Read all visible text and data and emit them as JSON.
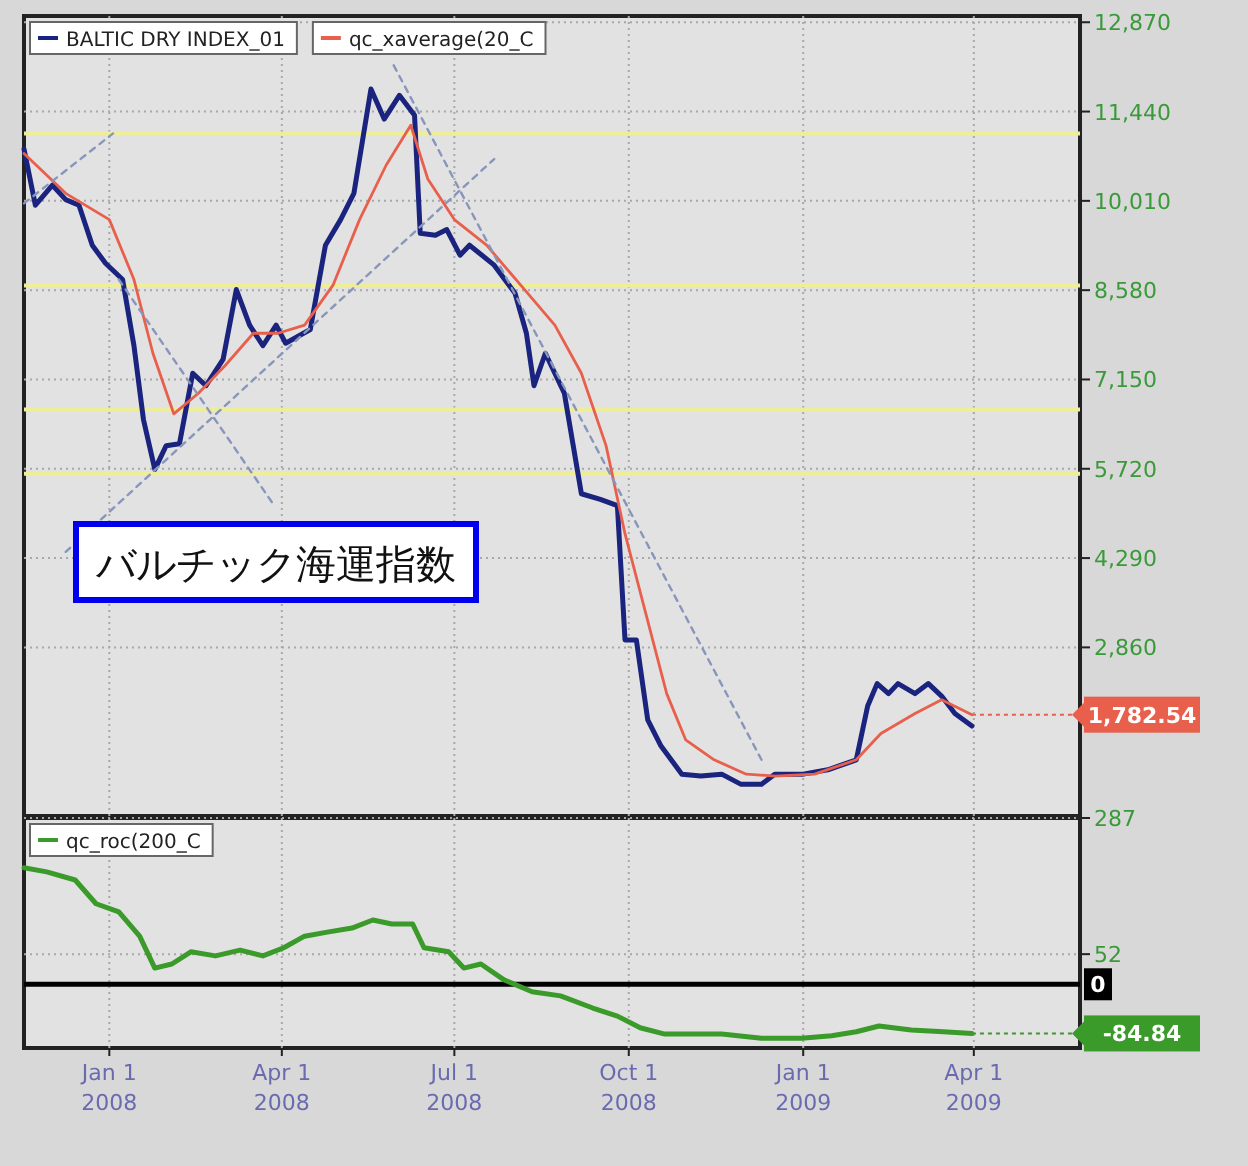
{
  "chart_data": [
    {
      "type": "line",
      "title": "バルチック海運指数",
      "xlim": [
        "2007-11-17",
        "2009-05-27"
      ],
      "ylim": [
        160,
        12970
      ],
      "xticks": [
        {
          "value": "2008-01-01",
          "label": null
        },
        {
          "value": "2008-04-01",
          "label": null
        },
        {
          "value": "2008-07-01",
          "label": null
        },
        {
          "value": "2008-10-01",
          "label": null
        },
        {
          "value": "2009-01-01",
          "label": null
        },
        {
          "value": "2009-04-01",
          "label": null
        }
      ],
      "yticks": [
        {
          "value": 2860,
          "label": "2,860"
        },
        {
          "value": 4290,
          "label": "4,290"
        },
        {
          "value": 5720,
          "label": "5,720"
        },
        {
          "value": 7150,
          "label": "7,150"
        },
        {
          "value": 8580,
          "label": "8,580"
        },
        {
          "value": 10010,
          "label": "10,010"
        },
        {
          "value": 11440,
          "label": "11,440"
        },
        {
          "value": 12870,
          "label": "12,870"
        }
      ],
      "tick_labels": "y",
      "grid": true,
      "legend": "top left",
      "ref_lines": [
        {
          "axis": "y",
          "value": 11090,
          "color": "#eeee99"
        },
        {
          "axis": "y",
          "value": 8655,
          "color": "#eeee99"
        },
        {
          "axis": "y",
          "value": 6670,
          "color": "#eeee99"
        },
        {
          "axis": "y",
          "value": 5640,
          "color": "#eeee99"
        }
      ],
      "series": [
        {
          "name": "BALTIC DRY INDEX_01",
          "color": "#1a237e",
          "x": [
            "2007-11-17",
            "2007-11-23",
            "2007-12-02",
            "2007-12-09",
            "2007-12-16",
            "2007-12-23",
            "2007-12-30",
            "2008-01-08",
            "2008-01-14",
            "2008-01-19",
            "2008-01-25",
            "2008-01-31",
            "2008-02-07",
            "2008-02-14",
            "2008-02-21",
            "2008-03-01",
            "2008-03-08",
            "2008-03-15",
            "2008-03-22",
            "2008-03-29",
            "2008-04-03",
            "2008-04-16",
            "2008-04-24",
            "2008-05-02",
            "2008-05-09",
            "2008-05-18",
            "2008-05-25",
            "2008-06-02",
            "2008-06-10",
            "2008-06-13",
            "2008-06-21",
            "2008-06-27",
            "2008-07-04",
            "2008-07-09",
            "2008-07-22",
            "2008-08-02",
            "2008-08-08",
            "2008-08-12",
            "2008-08-18",
            "2008-08-28",
            "2008-09-06",
            "2008-09-16",
            "2008-09-25",
            "2008-09-29",
            "2008-10-05",
            "2008-10-11",
            "2008-10-18",
            "2008-10-29",
            "2008-11-08",
            "2008-11-19",
            "2008-11-29",
            "2008-12-10",
            "2008-12-17",
            "2009-01-01",
            "2009-01-14",
            "2009-01-29",
            "2009-02-04",
            "2009-02-09",
            "2009-02-15",
            "2009-02-20",
            "2009-03-01",
            "2009-03-08",
            "2009-03-15",
            "2009-03-22",
            "2009-03-31"
          ],
          "values": [
            10840,
            9940,
            10260,
            10030,
            9940,
            9300,
            9010,
            8750,
            7690,
            6510,
            5710,
            6090,
            6120,
            7250,
            7050,
            7470,
            8590,
            8020,
            7690,
            8020,
            7730,
            7950,
            9300,
            9710,
            10130,
            11800,
            11320,
            11700,
            11380,
            9490,
            9460,
            9550,
            9140,
            9300,
            8980,
            8530,
            7890,
            7050,
            7570,
            6930,
            5320,
            5230,
            5130,
            2980,
            2980,
            1700,
            1280,
            830,
            800,
            830,
            670,
            670,
            830,
            830,
            900,
            1060,
            1920,
            2280,
            2120,
            2280,
            2120,
            2280,
            2080,
            1800,
            1600
          ]
        },
        {
          "name": "qc_xaverage(20_C",
          "color": "#e8604c",
          "x": [
            "2007-11-17",
            "2007-12-09",
            "2008-01-01",
            "2008-01-14",
            "2008-01-24",
            "2008-02-04",
            "2008-02-17",
            "2008-03-02",
            "2008-03-17",
            "2008-03-30",
            "2008-04-13",
            "2008-04-28",
            "2008-05-12",
            "2008-05-26",
            "2008-06-08",
            "2008-06-17",
            "2008-07-01",
            "2008-07-18",
            "2008-08-05",
            "2008-08-23",
            "2008-09-06",
            "2008-09-19",
            "2008-09-29",
            "2008-10-10",
            "2008-10-21",
            "2008-10-31",
            "2008-11-15",
            "2008-12-02",
            "2008-12-17",
            "2009-01-07",
            "2009-01-29",
            "2009-02-11",
            "2009-03-01",
            "2009-03-15",
            "2009-03-31"
          ],
          "values": [
            10770,
            10130,
            9710,
            8750,
            7570,
            6600,
            6930,
            7370,
            7890,
            7890,
            8020,
            8660,
            9710,
            10580,
            11220,
            10360,
            9710,
            9300,
            8660,
            8020,
            7250,
            6090,
            4680,
            3400,
            2120,
            1380,
            1060,
            830,
            800,
            830,
            1060,
            1480,
            1800,
            2020,
            1782.54
          ]
        },
        {
          "color": "#8896bb",
          "line_style": "dashed",
          "x": [
            "2007-12-09",
            "2008-07-22"
          ],
          "values": [
            4390,
            10680
          ]
        },
        {
          "color": "#8896bb",
          "line_style": "dashed",
          "x": [
            "2007-11-17",
            "2008-01-03"
          ],
          "values": [
            9970,
            11090
          ]
        },
        {
          "color": "#8896bb",
          "line_style": "dashed",
          "x": [
            "2008-01-06",
            "2008-03-28"
          ],
          "values": [
            8750,
            5130
          ]
        },
        {
          "color": "#8896bb",
          "line_style": "dashed",
          "x": [
            "2008-05-30",
            "2008-12-10"
          ],
          "values": [
            12180,
            1060
          ]
        }
      ],
      "annotations": [
        {
          "text": "1,782.54",
          "x": "2009-03-31",
          "y": 1782.54
        }
      ]
    },
    {
      "type": "line",
      "xlim": [
        "2007-11-17",
        "2009-05-27"
      ],
      "ylim": [
        -110,
        287
      ],
      "xticks": [
        {
          "value": "2008-01-01",
          "label": "Jan 1\n2008"
        },
        {
          "value": "2008-04-01",
          "label": "Apr 1\n2008"
        },
        {
          "value": "2008-07-01",
          "label": "Jul 1\n2008"
        },
        {
          "value": "2008-10-01",
          "label": "Oct 1\n2008"
        },
        {
          "value": "2009-01-01",
          "label": "Jan 1\n2009"
        },
        {
          "value": "2009-04-01",
          "label": "Apr 1\n2009"
        }
      ],
      "yticks": [
        287,
        52
      ],
      "grid": true,
      "legend": "top left",
      "ref_lines": [
        {
          "axis": "y",
          "value": 0,
          "label": "0",
          "color": "#000000"
        }
      ],
      "series": [
        {
          "name": "qc_roc(200_C",
          "color": "#3a9a2a",
          "x": [
            "2007-11-17",
            "2007-11-29",
            "2007-12-14",
            "2007-12-25",
            "2008-01-06",
            "2008-01-17",
            "2008-01-25",
            "2008-02-03",
            "2008-02-13",
            "2008-02-26",
            "2008-03-10",
            "2008-03-22",
            "2008-04-02",
            "2008-04-13",
            "2008-04-25",
            "2008-05-08",
            "2008-05-19",
            "2008-05-29",
            "2008-06-09",
            "2008-06-15",
            "2008-06-28",
            "2008-07-06",
            "2008-07-15",
            "2008-07-27",
            "2008-08-11",
            "2008-08-26",
            "2008-09-12",
            "2008-09-25",
            "2008-10-07",
            "2008-10-20",
            "2008-11-06",
            "2008-11-19",
            "2008-12-10",
            "2008-12-31",
            "2009-01-16",
            "2009-01-29",
            "2009-02-10",
            "2009-02-27",
            "2009-03-16",
            "2009-03-31"
          ],
          "values": [
            201,
            194,
            180,
            139,
            125,
            83,
            28,
            35,
            56,
            49,
            59,
            49,
            63,
            83,
            90,
            97,
            111,
            104,
            104,
            63,
            56,
            28,
            35,
            8,
            -13,
            -20,
            -41,
            -55,
            -75,
            -86,
            -86,
            -86,
            -93,
            -93,
            -89,
            -82,
            -72,
            -79,
            -82,
            -84.84
          ]
        }
      ],
      "annotations": [
        {
          "text": "-84.84",
          "x": "2009-03-31",
          "y": -84.84
        }
      ]
    }
  ]
}
